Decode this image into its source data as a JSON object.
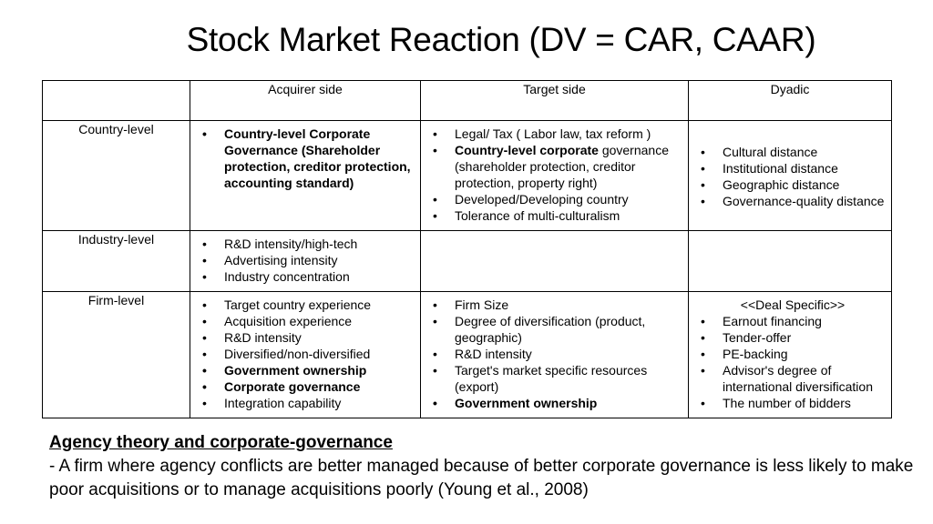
{
  "title": "Stock Market Reaction (DV = CAR, CAAR)",
  "table": {
    "columns": [
      "Acquirer side",
      "Target side",
      "Dyadic"
    ],
    "rows": {
      "country": {
        "label": "Country-level",
        "acquirer": [
          {
            "text": "Country-level Corporate Governance (Shareholder protection, creditor protection, accounting standard)",
            "bold": true
          }
        ],
        "target": [
          {
            "text": "Legal/ Tax ( Labor law, tax reform )"
          },
          {
            "bold_text": "Country-level corporate",
            "text": " governance (shareholder protection, creditor protection, property right)"
          },
          {
            "text": "Developed/Developing country"
          },
          {
            "text": "Tolerance of multi-culturalism"
          }
        ],
        "dyadic": [
          {
            "text": "Cultural distance"
          },
          {
            "text": "Institutional distance"
          },
          {
            "text": "Geographic distance"
          },
          {
            "text": "Governance-quality distance"
          }
        ]
      },
      "industry": {
        "label": "Industry-level",
        "acquirer": [
          {
            "text": "R&D intensity/high-tech"
          },
          {
            "text": "Advertising intensity"
          },
          {
            "text": "Industry concentration"
          }
        ]
      },
      "firm": {
        "label": "Firm-level",
        "acquirer": [
          {
            "text": "Target country experience"
          },
          {
            "text": "Acquisition experience"
          },
          {
            "text": "R&D intensity"
          },
          {
            "text": "Diversified/non-diversified"
          },
          {
            "text": "Government ownership",
            "bold": true
          },
          {
            "text": "Corporate governance",
            "bold": true
          },
          {
            "text": "Integration capability"
          }
        ],
        "target": [
          {
            "text": "Firm Size"
          },
          {
            "text": "Degree of diversification (product, geographic)"
          },
          {
            "text": "R&D intensity"
          },
          {
            "text": "Target's market specific resources (export)"
          },
          {
            "text": "Government ownership",
            "bold": true
          }
        ],
        "dyadic_heading": "<<Deal Specific>>",
        "dyadic": [
          {
            "text": "Earnout financing"
          },
          {
            "text": "Tender-offer"
          },
          {
            "text": "PE-backing"
          },
          {
            "text": "Advisor's degree of international diversification"
          },
          {
            "text": "The number of bidders"
          }
        ]
      }
    }
  },
  "note": {
    "heading": "Agency theory and corporate-governance",
    "body": "- A firm where agency conflicts are better managed because of better corporate governance is less likely to make poor acquisitions or to manage acquisitions poorly (Young et al., 2008)"
  }
}
